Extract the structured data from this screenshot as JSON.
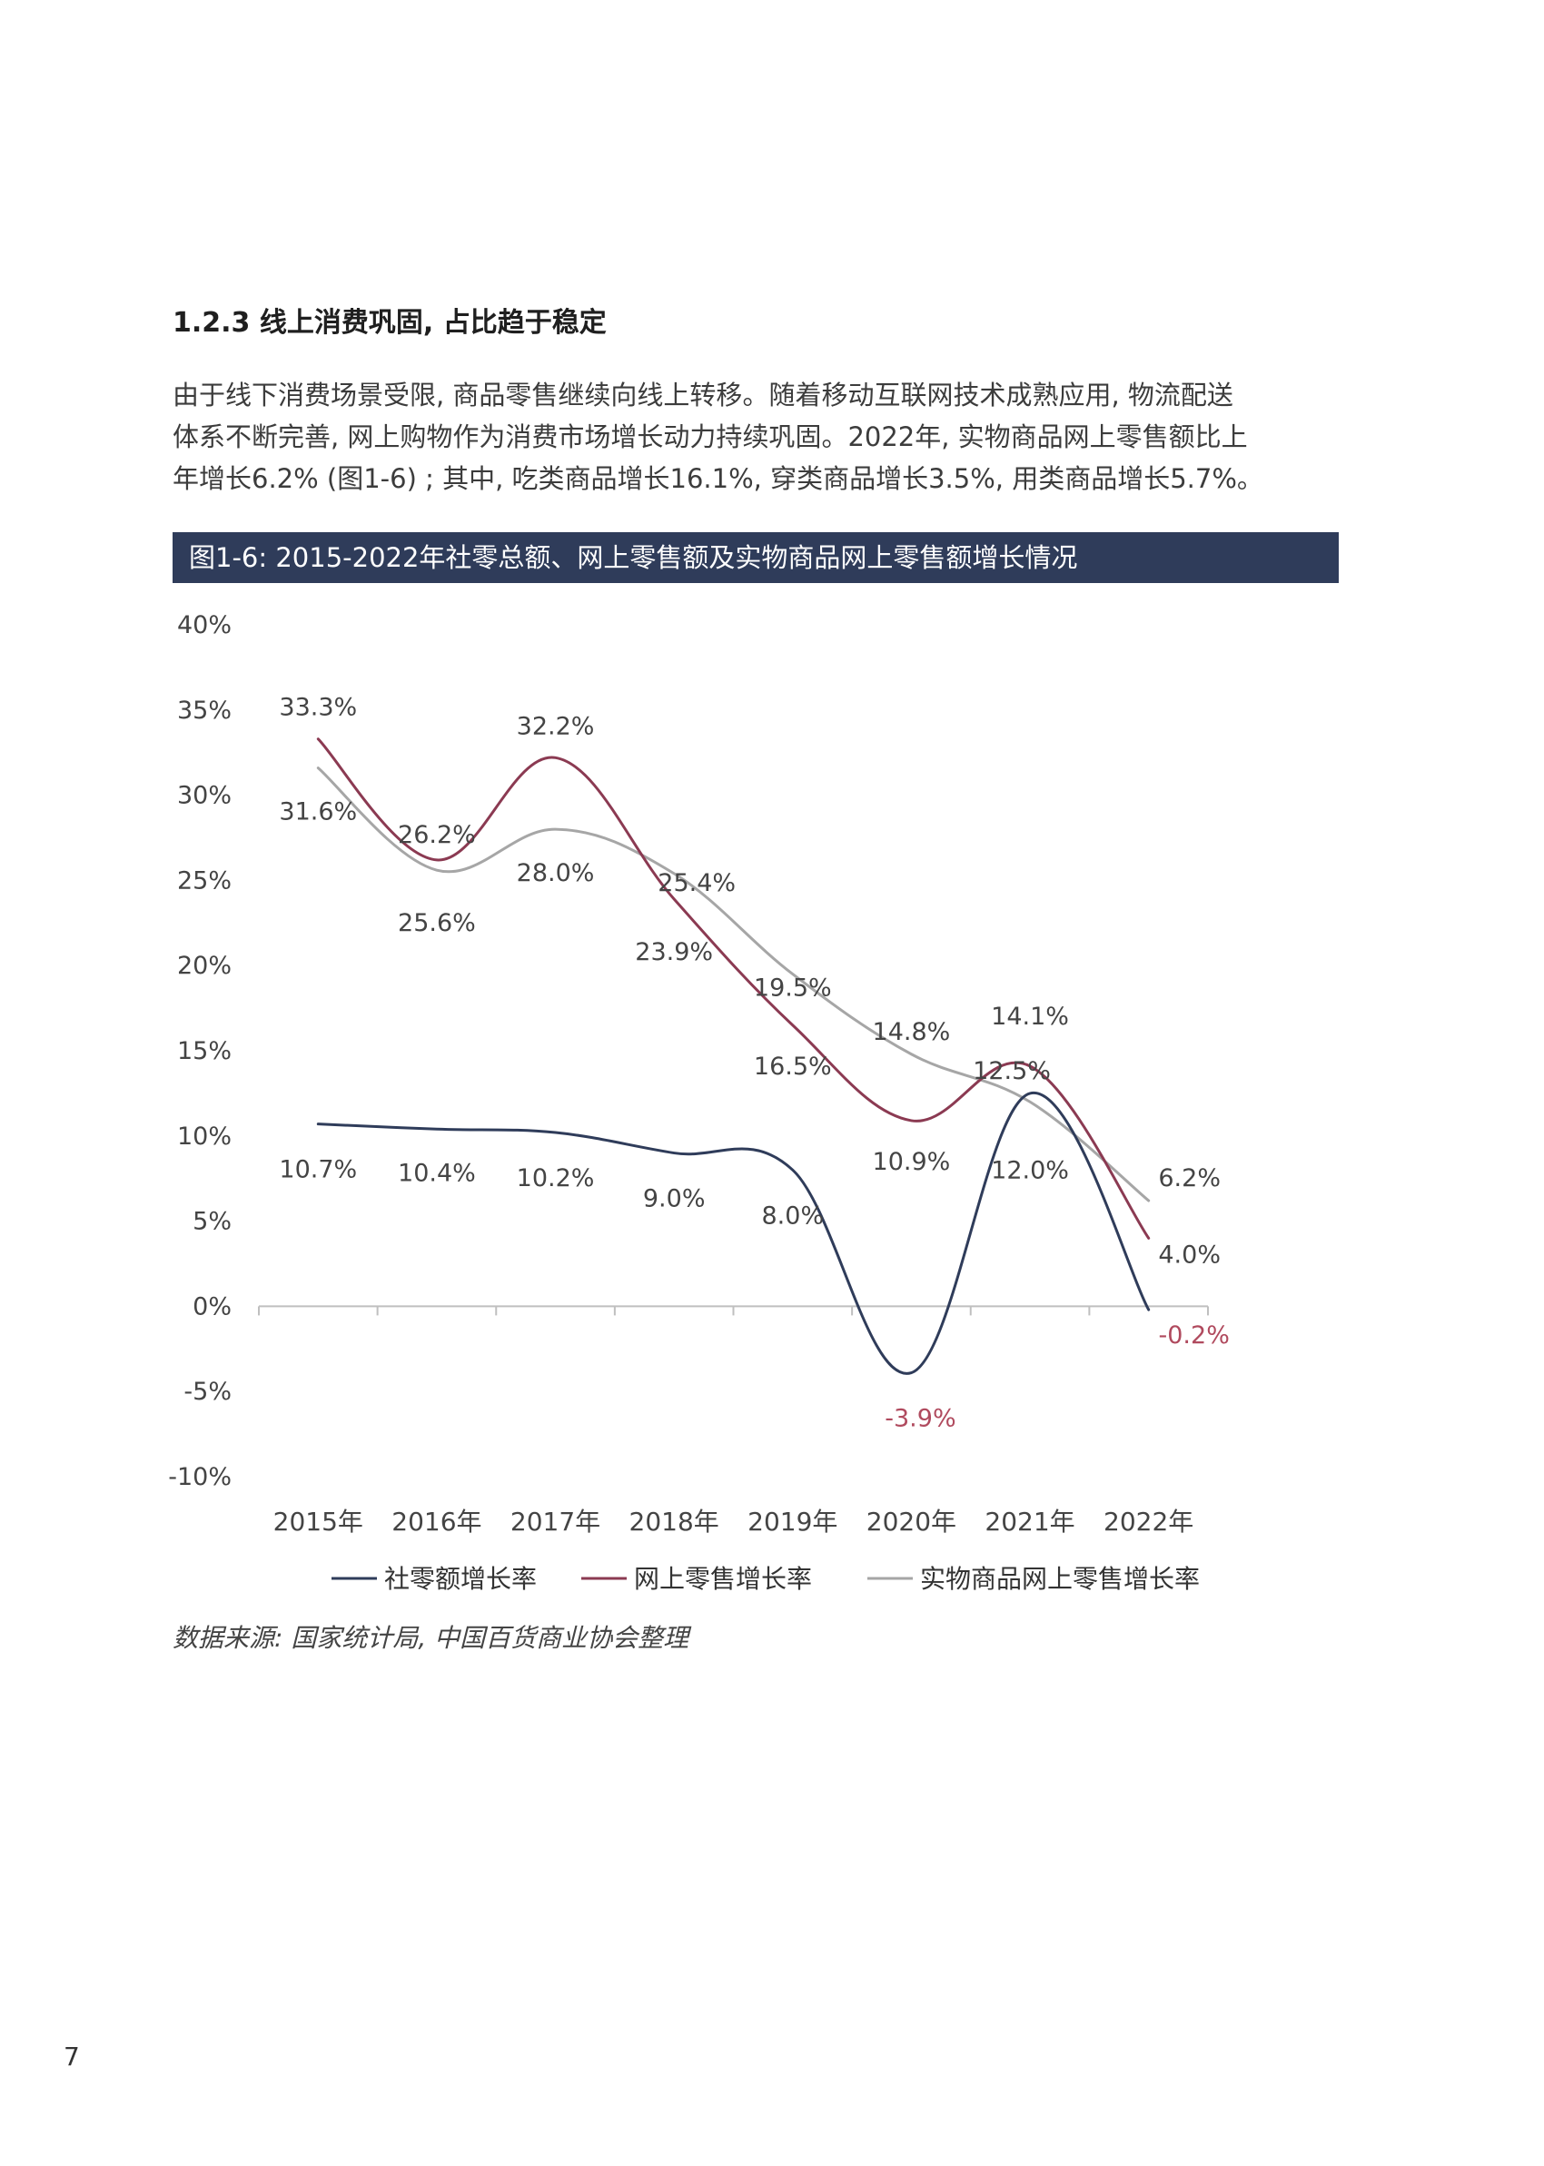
{
  "section": {
    "title": "1.2.3 线上消费巩固, 占比趋于稳定",
    "paragraph_lines": [
      "由于线下消费场景受限, 商品零售继续向线上转移。随着移动互联网技术成熟应用, 物流配送",
      "体系不断完善, 网上购物作为消费市场增长动力持续巩固。2022年, 实物商品网上零售额比上",
      "年增长6.2% (图1-6) ; 其中, 吃类商品增长16.1%, 穿类商品增长3.5%, 用类商品增长5.7%。"
    ]
  },
  "figure": {
    "caption": "图1-6: 2015-2022年社零总额、网上零售额及实物商品网上零售额增长情况",
    "caption_bg": "#2f3c5a"
  },
  "chart_data": {
    "type": "line",
    "title": "图1-6: 2015-2022年社零总额、网上零售额及实物商品网上零售额增长情况",
    "categories": [
      "2015年",
      "2016年",
      "2017年",
      "2018年",
      "2019年",
      "2020年",
      "2021年",
      "2022年"
    ],
    "ylim": [
      -10,
      40
    ],
    "yticks": [
      -10,
      -5,
      0,
      5,
      10,
      15,
      20,
      25,
      30,
      35,
      40
    ],
    "ytick_labels": [
      "-10%",
      "-5%",
      "0%",
      "5%",
      "10%",
      "15%",
      "20%",
      "25%",
      "30%",
      "35%",
      "40%"
    ],
    "grid": false,
    "legend_position": "bottom",
    "series": [
      {
        "name": "社零额增长率",
        "color": "#2f3c5a",
        "values": [
          10.7,
          10.4,
          10.2,
          9.0,
          8.0,
          -3.9,
          12.5,
          -0.2
        ],
        "labels": [
          "10.7%",
          "10.4%",
          "10.2%",
          "9.0%",
          "8.0%",
          "-3.9%",
          "12.5%",
          "-0.2%"
        ]
      },
      {
        "name": "网上零售增长率",
        "color": "#8b3a52",
        "values": [
          33.3,
          26.2,
          32.2,
          23.9,
          16.5,
          10.9,
          14.1,
          4.0
        ],
        "labels": [
          "33.3%",
          "26.2%",
          "32.2%",
          "23.9%",
          "16.5%",
          "10.9%",
          "14.1%",
          "4.0%"
        ]
      },
      {
        "name": "实物商品网上零售增长率",
        "color": "#a6a6a6",
        "values": [
          31.6,
          25.6,
          28.0,
          25.4,
          19.5,
          14.8,
          12.0,
          6.2
        ],
        "labels": [
          "31.6%",
          "25.6%",
          "28.0%",
          "25.4%",
          "19.5%",
          "14.8%",
          "12.0%",
          "6.2%"
        ]
      }
    ],
    "negative_label_color": "#b04a5e"
  },
  "footer": {
    "source": "数据来源: 国家统计局, 中国百货商业协会整理",
    "page_number": "7"
  }
}
